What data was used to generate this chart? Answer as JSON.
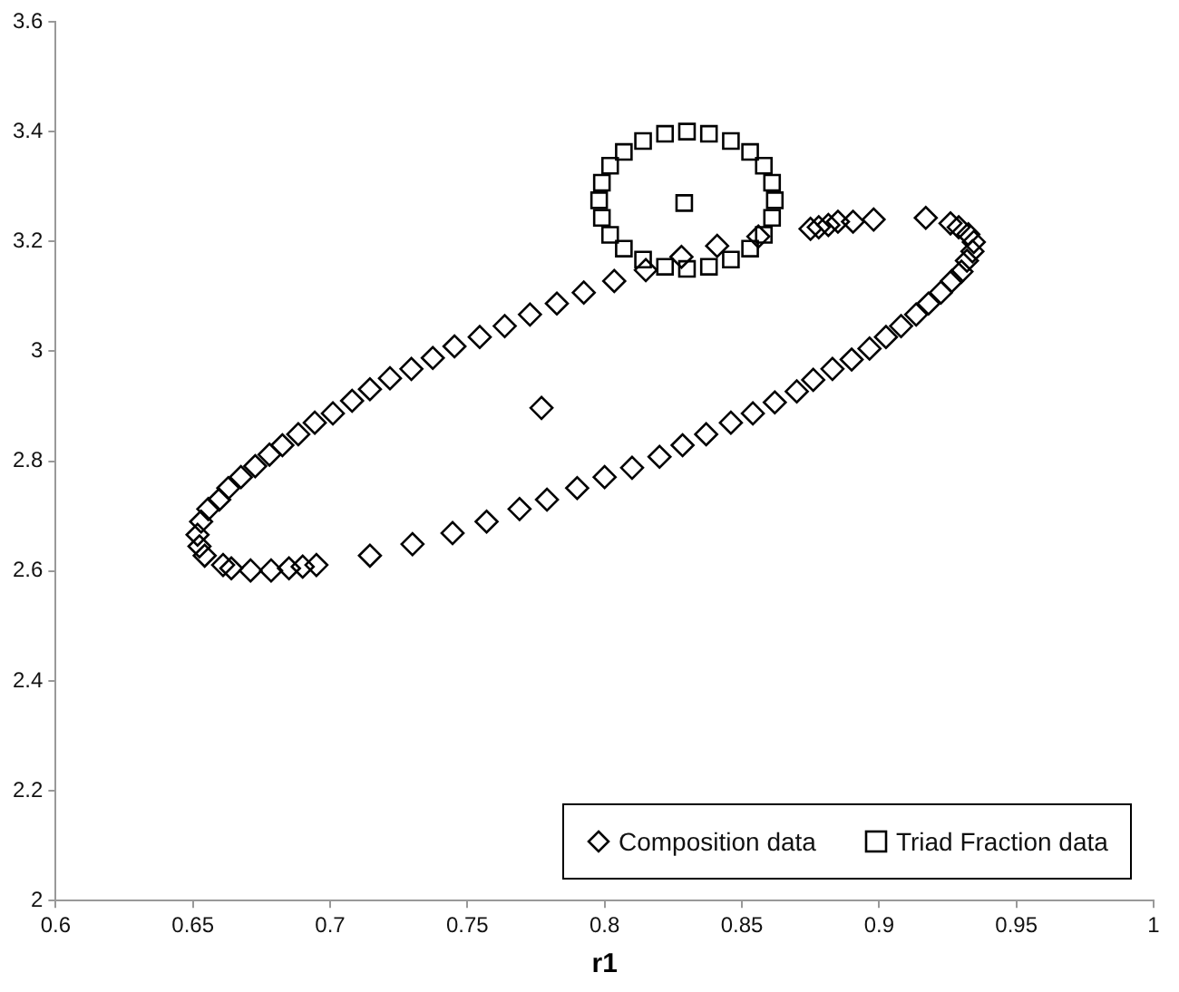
{
  "chart_data": {
    "type": "scatter",
    "xlabel": "r1",
    "xlim": [
      0.6,
      1
    ],
    "xticks": [
      0.6,
      0.65,
      0.7,
      0.75,
      0.8,
      0.85,
      0.9,
      0.95,
      1
    ],
    "ylim": [
      2,
      3.6
    ],
    "yticks": [
      2,
      2.2,
      2.4,
      2.6,
      2.8,
      3,
      3.2,
      3.4,
      3.6
    ],
    "grid": false,
    "legend": "bottom right",
    "series": [
      {
        "name": "Composition data",
        "color": "#000000",
        "marker": "diamond",
        "x": [
          0.8035,
          0.7924,
          0.7826,
          0.7728,
          0.7636,
          0.7545,
          0.7453,
          0.7374,
          0.7296,
          0.7218,
          0.7145,
          0.708,
          0.701,
          0.6944,
          0.6884,
          0.6826,
          0.6779,
          0.6727,
          0.6675,
          0.6629,
          0.6596,
          0.6556,
          0.653,
          0.6517,
          0.6524,
          0.6543,
          0.661,
          0.664,
          0.671,
          0.6785,
          0.685,
          0.69,
          0.695,
          0.7145,
          0.73,
          0.7446,
          0.757,
          0.769,
          0.779,
          0.79,
          0.8,
          0.81,
          0.82,
          0.8284,
          0.837,
          0.846,
          0.854,
          0.862,
          0.87,
          0.876,
          0.883,
          0.89,
          0.8965,
          0.9025,
          0.908,
          0.9135,
          0.918,
          0.9225,
          0.9265,
          0.93,
          0.932,
          0.934,
          0.9345,
          0.9325,
          0.929,
          0.926,
          0.917,
          0.898,
          0.8905,
          0.885,
          0.8815,
          0.878,
          0.875,
          0.856,
          0.841,
          0.828,
          0.815,
          0.777
        ],
        "values": [
          3.128,
          3.107,
          3.087,
          3.067,
          3.046,
          3.026,
          3.009,
          2.988,
          2.968,
          2.951,
          2.931,
          2.91,
          2.887,
          2.87,
          2.849,
          2.829,
          2.812,
          2.791,
          2.771,
          2.751,
          2.73,
          2.713,
          2.69,
          2.666,
          2.645,
          2.628,
          2.611,
          2.605,
          2.601,
          2.601,
          2.605,
          2.608,
          2.611,
          2.628,
          2.649,
          2.669,
          2.69,
          2.713,
          2.73,
          2.751,
          2.771,
          2.788,
          2.808,
          2.829,
          2.849,
          2.87,
          2.887,
          2.907,
          2.927,
          2.948,
          2.968,
          2.985,
          3.005,
          3.026,
          3.046,
          3.067,
          3.087,
          3.107,
          3.128,
          3.145,
          3.165,
          3.182,
          3.199,
          3.213,
          3.226,
          3.233,
          3.243,
          3.24,
          3.236,
          3.236,
          3.23,
          3.226,
          3.223,
          3.209,
          3.192,
          3.172,
          3.148,
          2.897
        ]
      },
      {
        "name": "Triad Fraction data",
        "color": "#000000",
        "marker": "square",
        "x": [
          0.862,
          0.861,
          0.858,
          0.853,
          0.846,
          0.838,
          0.83,
          0.822,
          0.814,
          0.807,
          0.802,
          0.799,
          0.798,
          0.799,
          0.802,
          0.807,
          0.814,
          0.822,
          0.83,
          0.838,
          0.846,
          0.853,
          0.858,
          0.861,
          0.829
        ],
        "values": [
          3.275,
          3.307,
          3.338,
          3.363,
          3.383,
          3.396,
          3.4,
          3.396,
          3.383,
          3.363,
          3.338,
          3.307,
          3.275,
          3.243,
          3.212,
          3.187,
          3.167,
          3.154,
          3.15,
          3.154,
          3.167,
          3.187,
          3.212,
          3.243,
          3.27
        ]
      }
    ]
  }
}
